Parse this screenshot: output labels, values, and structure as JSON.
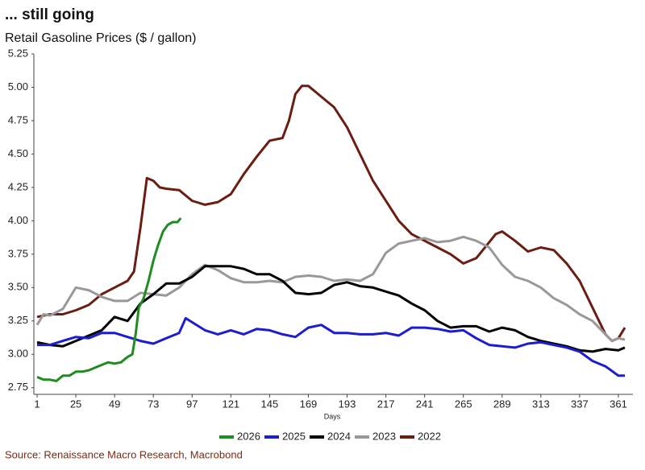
{
  "chart_data": {
    "type": "line",
    "title": "... still going",
    "subtitle": "Retail Gasoline Prices ($ / gallon)",
    "x_label": "Days",
    "source": "Source: Renaissance Macro Research, Macrobond",
    "xlim": [
      -1,
      370
    ],
    "xticks": [
      1,
      25,
      49,
      73,
      97,
      121,
      145,
      169,
      193,
      217,
      241,
      265,
      289,
      313,
      337,
      361
    ],
    "ylim": [
      2.7,
      5.25
    ],
    "yticks": [
      2.75,
      {
        "value": 3,
        "label": "3.00"
      },
      3.25,
      {
        "value": 3.5,
        "label": "3.50"
      },
      3.75,
      {
        "value": 4,
        "label": "4.00"
      },
      4.25,
      {
        "value": 4.5,
        "label": "4.50"
      },
      4.75,
      {
        "value": 5,
        "label": "5.00"
      },
      5.25
    ],
    "grid": false,
    "legend": "bottom",
    "series": [
      {
        "name": "2026",
        "color": "#1f8c1f",
        "x": [
          1,
          5,
          9,
          13,
          17,
          21,
          25,
          29,
          33,
          37,
          41,
          45,
          49,
          53,
          57,
          60,
          62,
          64,
          67,
          70,
          73,
          76,
          79,
          82,
          85,
          88,
          90
        ],
        "values": [
          2.83,
          2.81,
          2.81,
          2.8,
          2.84,
          2.84,
          2.87,
          2.87,
          2.88,
          2.9,
          2.92,
          2.94,
          2.93,
          2.94,
          2.98,
          3.0,
          3.15,
          3.35,
          3.42,
          3.55,
          3.7,
          3.82,
          3.92,
          3.97,
          3.99,
          3.99,
          4.02
        ]
      },
      {
        "name": "2025",
        "color": "#1c1cd0",
        "x": [
          1,
          9,
          17,
          25,
          33,
          41,
          49,
          57,
          65,
          73,
          81,
          89,
          93,
          97,
          105,
          113,
          121,
          129,
          137,
          145,
          153,
          161,
          169,
          177,
          185,
          193,
          201,
          209,
          217,
          225,
          233,
          241,
          249,
          257,
          265,
          273,
          281,
          289,
          297,
          305,
          313,
          321,
          329,
          337,
          345,
          353,
          361,
          365
        ],
        "values": [
          3.07,
          3.07,
          3.1,
          3.13,
          3.12,
          3.16,
          3.16,
          3.13,
          3.1,
          3.08,
          3.12,
          3.16,
          3.27,
          3.24,
          3.18,
          3.15,
          3.18,
          3.15,
          3.19,
          3.18,
          3.15,
          3.13,
          3.2,
          3.22,
          3.16,
          3.16,
          3.15,
          3.15,
          3.16,
          3.14,
          3.2,
          3.2,
          3.19,
          3.17,
          3.18,
          3.12,
          3.07,
          3.06,
          3.05,
          3.08,
          3.09,
          3.07,
          3.05,
          3.02,
          2.95,
          2.91,
          2.84,
          2.84
        ]
      },
      {
        "name": "2024",
        "color": "#000000",
        "x": [
          1,
          9,
          17,
          25,
          33,
          41,
          49,
          57,
          65,
          73,
          81,
          89,
          97,
          105,
          113,
          121,
          129,
          137,
          145,
          153,
          161,
          169,
          177,
          185,
          193,
          201,
          209,
          217,
          225,
          233,
          241,
          249,
          257,
          265,
          273,
          281,
          289,
          297,
          305,
          313,
          321,
          329,
          337,
          345,
          353,
          361,
          365
        ],
        "values": [
          3.09,
          3.07,
          3.06,
          3.1,
          3.14,
          3.18,
          3.28,
          3.25,
          3.38,
          3.45,
          3.53,
          3.53,
          3.58,
          3.66,
          3.66,
          3.66,
          3.64,
          3.6,
          3.6,
          3.55,
          3.46,
          3.45,
          3.46,
          3.52,
          3.54,
          3.51,
          3.5,
          3.47,
          3.44,
          3.38,
          3.33,
          3.25,
          3.2,
          3.21,
          3.21,
          3.17,
          3.2,
          3.18,
          3.13,
          3.1,
          3.08,
          3.06,
          3.03,
          3.02,
          3.04,
          3.03,
          3.05
        ]
      },
      {
        "name": "2023",
        "color": "#999999",
        "x": [
          1,
          5,
          9,
          17,
          25,
          33,
          41,
          49,
          57,
          65,
          73,
          81,
          89,
          97,
          105,
          113,
          121,
          129,
          137,
          145,
          153,
          161,
          169,
          177,
          185,
          193,
          201,
          209,
          217,
          225,
          233,
          241,
          249,
          257,
          265,
          273,
          281,
          289,
          297,
          305,
          313,
          321,
          329,
          337,
          345,
          353,
          357,
          361,
          365
        ],
        "values": [
          3.22,
          3.3,
          3.29,
          3.34,
          3.5,
          3.48,
          3.43,
          3.4,
          3.4,
          3.46,
          3.45,
          3.44,
          3.5,
          3.6,
          3.67,
          3.63,
          3.57,
          3.54,
          3.54,
          3.55,
          3.54,
          3.58,
          3.59,
          3.58,
          3.55,
          3.56,
          3.55,
          3.6,
          3.76,
          3.83,
          3.85,
          3.87,
          3.84,
          3.85,
          3.88,
          3.85,
          3.8,
          3.67,
          3.58,
          3.55,
          3.5,
          3.42,
          3.37,
          3.3,
          3.25,
          3.15,
          3.1,
          3.12,
          3.11
        ]
      },
      {
        "name": "2022",
        "color": "#6b1d12",
        "x": [
          1,
          9,
          17,
          25,
          33,
          41,
          49,
          57,
          61,
          65,
          69,
          73,
          77,
          81,
          89,
          97,
          105,
          113,
          121,
          129,
          137,
          145,
          153,
          157,
          161,
          165,
          169,
          177,
          185,
          193,
          201,
          209,
          217,
          225,
          233,
          241,
          249,
          257,
          265,
          273,
          281,
          285,
          289,
          297,
          305,
          313,
          321,
          329,
          337,
          345,
          353,
          357,
          361,
          365
        ],
        "values": [
          3.28,
          3.3,
          3.3,
          3.33,
          3.37,
          3.45,
          3.5,
          3.55,
          3.62,
          3.95,
          4.32,
          4.3,
          4.25,
          4.24,
          4.23,
          4.15,
          4.12,
          4.14,
          4.2,
          4.35,
          4.48,
          4.6,
          4.62,
          4.75,
          4.95,
          5.01,
          5.01,
          4.93,
          4.85,
          4.7,
          4.5,
          4.3,
          4.15,
          4.0,
          3.9,
          3.85,
          3.8,
          3.75,
          3.68,
          3.72,
          3.84,
          3.9,
          3.92,
          3.85,
          3.77,
          3.8,
          3.78,
          3.68,
          3.55,
          3.35,
          3.15,
          3.1,
          3.12,
          3.2
        ]
      }
    ]
  }
}
